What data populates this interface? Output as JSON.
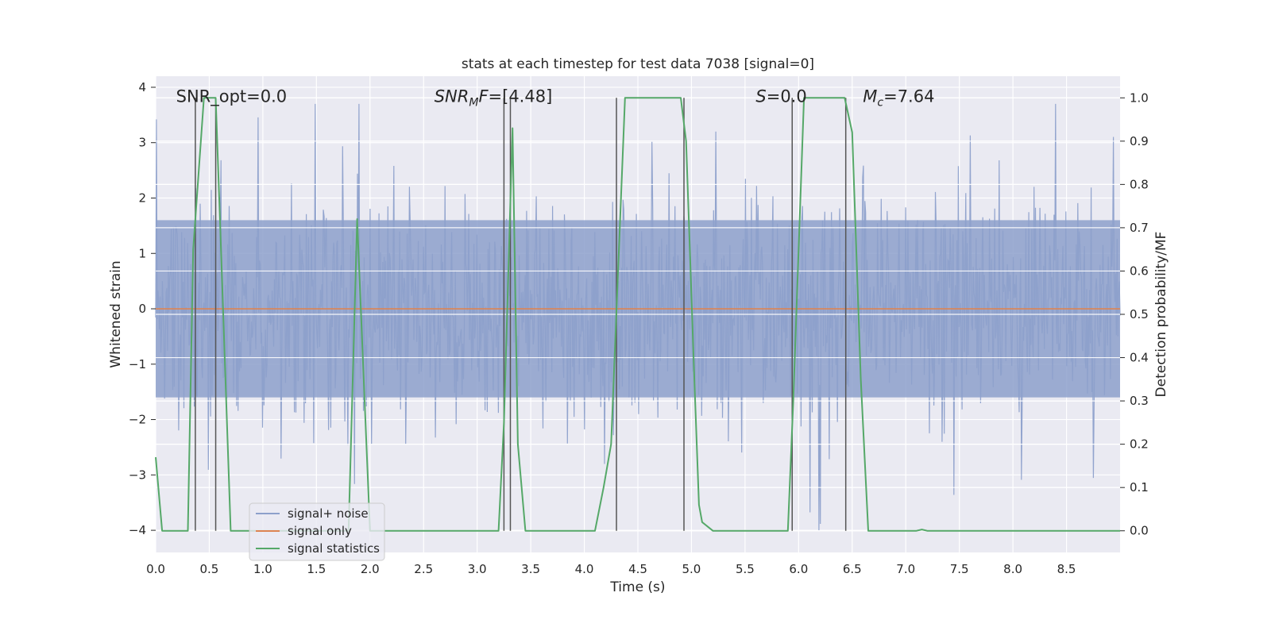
{
  "chart_data": {
    "type": "line",
    "title": "stats at each timestep for test data 7038 [signal=0]",
    "xlabel": "Time (s)",
    "ylabel_left": "Whitened strain",
    "ylabel_right": "Detection probability/MF",
    "xlim": [
      0,
      9.0
    ],
    "ylim_left": [
      -4.4,
      4.2
    ],
    "ylim_right": [
      -0.05,
      1.05
    ],
    "x_ticks": [
      "0.0",
      "0.5",
      "1.0",
      "1.5",
      "2.0",
      "2.5",
      "3.0",
      "3.5",
      "4.0",
      "4.5",
      "5.0",
      "5.5",
      "6.0",
      "6.5",
      "7.0",
      "7.5",
      "8.0",
      "8.5"
    ],
    "y_ticks_left": [
      "−4",
      "−3",
      "−2",
      "−1",
      "0",
      "1",
      "2",
      "3",
      "4"
    ],
    "y_ticks_right": [
      "0.0",
      "0.1",
      "0.2",
      "0.3",
      "0.4",
      "0.5",
      "0.6",
      "0.7",
      "0.8",
      "0.9",
      "1.0"
    ],
    "grid": true,
    "legend_position": "lower-left",
    "colors": {
      "signal_noise": "#8da0cb",
      "signal_only": "#dd8452",
      "signal_statistics": "#55a868",
      "vlines": "#555555",
      "axes_bg": "#eaeaf2",
      "grid": "#ffffff"
    },
    "annotations": [
      {
        "text": "SNR_opt=0.0",
        "x": 0.19,
        "y": 3.82
      },
      {
        "text": "SNR_MF=[4.48]",
        "x": 2.6,
        "y": 3.82,
        "math": "mf"
      },
      {
        "text": "S=0.0",
        "x": 5.6,
        "y": 3.82,
        "math": "s"
      },
      {
        "text": "M_c=7.64",
        "x": 6.6,
        "y": 3.82,
        "math": "mc"
      }
    ],
    "series": [
      {
        "name": "signal+ noise",
        "axis": "left",
        "kind": "noise",
        "description_values": {
          "typical_band": [
            -1.6,
            1.6
          ],
          "peak_max": 3.7,
          "peak_min": -4.0
        }
      },
      {
        "name": "signal only",
        "axis": "left",
        "x": [
          0.0,
          9.0
        ],
        "y": [
          0.0,
          0.0
        ]
      },
      {
        "name": "signal statistics",
        "axis": "right",
        "x": [
          0.0,
          0.06,
          0.1,
          0.3,
          0.35,
          0.45,
          0.56,
          0.6,
          0.7,
          0.75,
          0.9,
          1.8,
          1.88,
          1.95,
          2.0,
          3.0,
          3.2,
          3.25,
          3.33,
          3.38,
          3.45,
          3.5,
          4.1,
          4.18,
          4.25,
          4.38,
          4.5,
          4.9,
          4.95,
          5.02,
          5.07,
          5.1,
          5.2,
          5.3,
          5.9,
          5.95,
          6.05,
          6.43,
          6.5,
          6.58,
          6.65,
          7.1,
          7.15,
          7.2,
          9.0
        ],
        "y": [
          0.17,
          0.0,
          0.0,
          0.0,
          0.65,
          1.0,
          1.0,
          0.72,
          0.0,
          0.0,
          0.0,
          0.0,
          0.72,
          0.3,
          0.0,
          0.0,
          0.0,
          0.25,
          0.93,
          0.2,
          0.0,
          0.0,
          0.0,
          0.1,
          0.2,
          1.0,
          1.0,
          1.0,
          0.9,
          0.4,
          0.06,
          0.02,
          0.0,
          0.0,
          0.0,
          0.3,
          1.0,
          1.0,
          0.92,
          0.35,
          0.0,
          0.0,
          0.003,
          0.0,
          0.0
        ]
      }
    ],
    "vertical_lines": [
      0.37,
      0.56,
      3.25,
      3.31,
      4.3,
      4.93,
      5.94,
      6.44
    ]
  }
}
